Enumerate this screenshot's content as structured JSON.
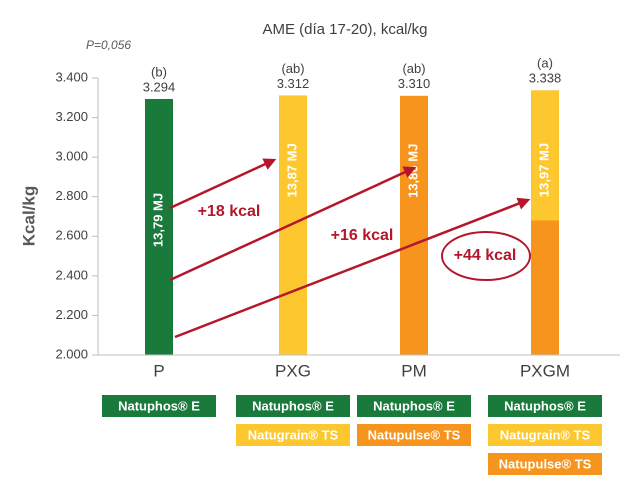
{
  "chart_data": {
    "type": "bar",
    "title": "AME (día 17-20), kcal/kg",
    "ylabel": "Kcal/kg",
    "p_value": "P=0,056",
    "categories": [
      "P",
      "PXG",
      "PM",
      "PXGM"
    ],
    "values": [
      3294,
      3312,
      3310,
      3338
    ],
    "value_labels": [
      "3.294",
      "3.312",
      "3.310",
      "3.338"
    ],
    "letters": [
      "(b)",
      "(ab)",
      "(ab)",
      "(a)"
    ],
    "bar_labels": [
      "13,79 MJ",
      "13,87 MJ",
      "13,86 MJ",
      "13,97 MJ"
    ],
    "colors": [
      "#1a7a3c",
      "#fdc82f",
      "#f7941d",
      "#fdc82f"
    ],
    "lower_segment": {
      "values": [
        null,
        null,
        null,
        2680
      ],
      "color": "#f7941d"
    },
    "ylim": [
      2000,
      3400
    ],
    "yticks": [
      {
        "value": 2000,
        "label": "2.000"
      },
      {
        "value": 2200,
        "label": "2.200"
      },
      {
        "value": 2400,
        "label": "2.400"
      },
      {
        "value": 2600,
        "label": "2.600"
      },
      {
        "value": 2800,
        "label": "2.800"
      },
      {
        "value": 3000,
        "label": "3.000"
      },
      {
        "value": 3200,
        "label": "3.200"
      },
      {
        "value": 3400,
        "label": "3.400"
      }
    ],
    "annotations": [
      "+18 kcal",
      "+16 kcal",
      "+44 kcal"
    ],
    "products": [
      [
        {
          "text": "Natuphos® E",
          "color": "#1a7a3c"
        }
      ],
      [
        {
          "text": "Natuphos® E",
          "color": "#1a7a3c"
        },
        {
          "text": "Natugrain® TS",
          "color": "#fdc82f"
        }
      ],
      [
        {
          "text": "Natuphos® E",
          "color": "#1a7a3c"
        },
        {
          "text": "Natupulse® TS",
          "color": "#f7941d"
        }
      ],
      [
        {
          "text": "Natuphos® E",
          "color": "#1a7a3c"
        },
        {
          "text": "Natugrain® TS",
          "color": "#fdc82f"
        },
        {
          "text": "Natupulse® TS",
          "color": "#f7941d"
        }
      ]
    ]
  }
}
